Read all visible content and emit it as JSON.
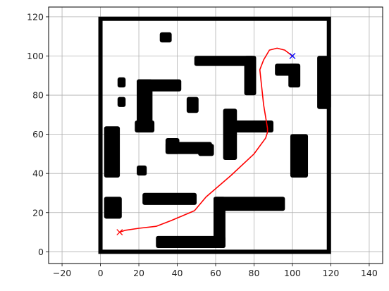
{
  "chart_data": {
    "type": "scatter",
    "title": "",
    "xlabel": "",
    "ylabel": "",
    "xlim": [
      -27,
      147
    ],
    "ylim": [
      -6,
      125
    ],
    "x_ticks": [
      -20,
      0,
      20,
      40,
      60,
      80,
      100,
      120,
      140
    ],
    "y_ticks": [
      0,
      20,
      40,
      60,
      80,
      100,
      120
    ],
    "grid": true,
    "colors": {
      "obstacle": "#000000",
      "path": "#ff0000",
      "start": "#ff0000",
      "goal": "#0000ff",
      "grid": "#b0b0b0"
    },
    "boundary": {
      "x": [
        0,
        119
      ],
      "y": [
        0,
        119
      ]
    },
    "obstacles": [
      {
        "x": [
          32,
          36
        ],
        "y": [
          108,
          111
        ]
      },
      {
        "x": [
          50,
          79
        ],
        "y": [
          96,
          99
        ]
      },
      {
        "x": [
          76,
          80
        ],
        "y": [
          81,
          99
        ]
      },
      {
        "x": [
          92,
          102
        ],
        "y": [
          91,
          95
        ]
      },
      {
        "x": [
          99,
          103
        ],
        "y": [
          85,
          95
        ]
      },
      {
        "x": [
          114,
          119
        ],
        "y": [
          74,
          99
        ]
      },
      {
        "x": [
          20,
          41
        ],
        "y": [
          83,
          87
        ]
      },
      {
        "x": [
          20,
          26
        ],
        "y": [
          63,
          87
        ]
      },
      {
        "x": [
          19,
          27
        ],
        "y": [
          62,
          66
        ]
      },
      {
        "x": [
          10,
          12
        ],
        "y": [
          85,
          88
        ]
      },
      {
        "x": [
          10,
          12
        ],
        "y": [
          75,
          78
        ]
      },
      {
        "x": [
          46,
          50
        ],
        "y": [
          72,
          78
        ]
      },
      {
        "x": [
          65,
          70
        ],
        "y": [
          48,
          72
        ]
      },
      {
        "x": [
          67,
          89
        ],
        "y": [
          62,
          66
        ]
      },
      {
        "x": [
          3,
          9
        ],
        "y": [
          39,
          63
        ]
      },
      {
        "x": [
          35,
          57
        ],
        "y": [
          51,
          55
        ]
      },
      {
        "x": [
          35,
          40
        ],
        "y": [
          51,
          57
        ]
      },
      {
        "x": [
          52,
          58
        ],
        "y": [
          50,
          54
        ]
      },
      {
        "x": [
          20,
          23
        ],
        "y": [
          40,
          43
        ]
      },
      {
        "x": [
          100,
          107
        ],
        "y": [
          39,
          59
        ]
      },
      {
        "x": [
          3,
          10
        ],
        "y": [
          18,
          27
        ]
      },
      {
        "x": [
          23,
          49
        ],
        "y": [
          25,
          29
        ]
      },
      {
        "x": [
          60,
          95
        ],
        "y": [
          22,
          27
        ]
      },
      {
        "x": [
          60,
          64
        ],
        "y": [
          3,
          27
        ]
      },
      {
        "x": [
          30,
          64
        ],
        "y": [
          3,
          7
        ]
      }
    ],
    "series": [
      {
        "x": [
          10,
          13,
          20,
          29,
          37,
          49,
          55,
          68,
          80,
          86,
          87,
          87,
          85,
          84,
          83,
          85,
          88,
          92,
          96,
          100
        ],
        "y": [
          10,
          11,
          12,
          13,
          16,
          21,
          28,
          39,
          50,
          58,
          61,
          63,
          75,
          84,
          93,
          98,
          103,
          104,
          103,
          100
        ]
      }
    ],
    "start": {
      "x": 10,
      "y": 10
    },
    "goal": {
      "x": 100,
      "y": 100
    }
  }
}
